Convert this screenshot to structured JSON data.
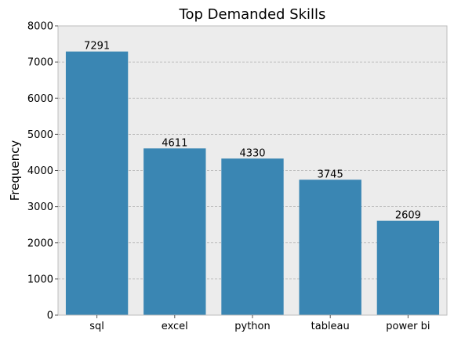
{
  "chart_data": {
    "type": "bar",
    "title": "Top Demanded Skills",
    "xlabel": "",
    "ylabel": "Frequency",
    "categories": [
      "sql",
      "excel",
      "python",
      "tableau",
      "power bi"
    ],
    "values": [
      7291,
      4611,
      4330,
      3745,
      2609
    ],
    "ylim": [
      0,
      8000
    ],
    "yticks": [
      0,
      1000,
      2000,
      3000,
      4000,
      5000,
      6000,
      7000,
      8000
    ],
    "grid": true,
    "legend": "none",
    "colors": {
      "bar": "#3a86b3",
      "plot_background": "#ececec"
    }
  }
}
